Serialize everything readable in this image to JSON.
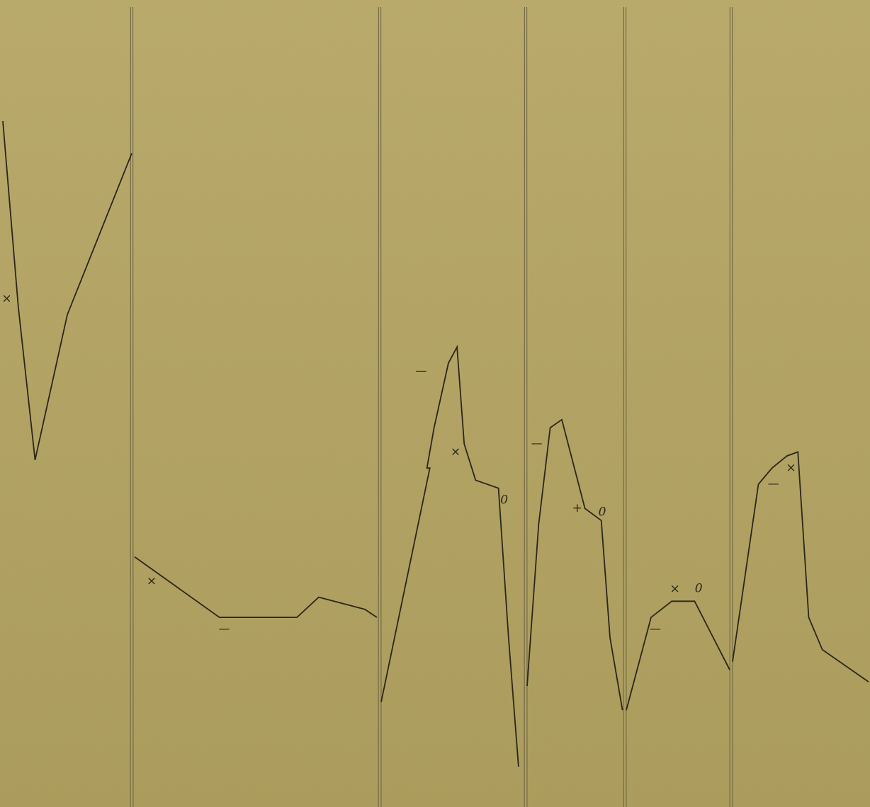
{
  "chart_data": {
    "type": "line",
    "title": "",
    "xlabel": "",
    "ylabel": "",
    "grid": false,
    "legend": "none",
    "colors": {
      "paper": "#b6a767",
      "ink": "#2b261a",
      "divider": "#6f6744"
    },
    "panels": [
      {
        "name": "",
        "trace": [
          [
            0,
            15
          ],
          [
            12,
            38
          ],
          [
            25,
            57
          ],
          [
            50,
            39
          ],
          [
            100,
            19
          ]
        ],
        "marks": [
          {
            "label": "×",
            "at": [
              3,
              37
            ]
          }
        ]
      },
      {
        "name": "",
        "trace": [
          [
            0,
            69
          ],
          [
            35,
            76.5
          ],
          [
            67,
            76.5
          ],
          [
            76,
            74
          ],
          [
            95,
            75.5
          ],
          [
            100,
            76.5
          ]
        ],
        "marks": [
          {
            "label": "×",
            "at": [
              7,
              72
            ]
          },
          {
            "label": "—",
            "at": [
              37,
              78
            ]
          }
        ]
      },
      {
        "name": "",
        "trace": [
          [
            0,
            87
          ],
          [
            34,
            58
          ],
          [
            32,
            58
          ],
          [
            37,
            53
          ],
          [
            47,
            45
          ],
          [
            53,
            43
          ],
          [
            58,
            55
          ],
          [
            66,
            59.5
          ],
          [
            82,
            60.5
          ],
          [
            89,
            79
          ],
          [
            96,
            95
          ]
        ],
        "marks": [
          {
            "label": "—",
            "at": [
              28,
              46
            ]
          },
          {
            "label": "×",
            "at": [
              52,
              56
            ]
          },
          {
            "label": "0",
            "at": [
              86,
              62
            ]
          }
        ]
      },
      {
        "name": "",
        "trace": [
          [
            0,
            85
          ],
          [
            12,
            65
          ],
          [
            24,
            53
          ],
          [
            36,
            52
          ],
          [
            60,
            63
          ],
          [
            77,
            64.5
          ],
          [
            86,
            79
          ],
          [
            99,
            88
          ]
        ],
        "marks": [
          {
            "label": "—",
            "at": [
              10,
              55
            ]
          },
          {
            "label": "+",
            "at": [
              52,
              63
            ]
          },
          {
            "label": "0",
            "at": [
              78,
              63.5
            ]
          }
        ]
      },
      {
        "name": "",
        "trace": [
          [
            0,
            88
          ],
          [
            24,
            76.5
          ],
          [
            44,
            74.5
          ],
          [
            66,
            74.5
          ],
          [
            100,
            83
          ]
        ],
        "marks": [
          {
            "label": "—",
            "at": [
              28,
              78
            ]
          },
          {
            "label": "×",
            "at": [
              47,
              73
            ]
          },
          {
            "label": "0",
            "at": [
              70,
              73
            ]
          }
        ]
      },
      {
        "name": "",
        "trace": [
          [
            0,
            82
          ],
          [
            19,
            60
          ],
          [
            29,
            58
          ],
          [
            40,
            56.5
          ],
          [
            48,
            56
          ],
          [
            56,
            76.5
          ],
          [
            66,
            80.5
          ],
          [
            100,
            84.5
          ]
        ],
        "marks": [
          {
            "label": "—",
            "at": [
              30,
              60
            ]
          },
          {
            "label": "×",
            "at": [
              43,
              58
            ]
          }
        ]
      }
    ]
  }
}
